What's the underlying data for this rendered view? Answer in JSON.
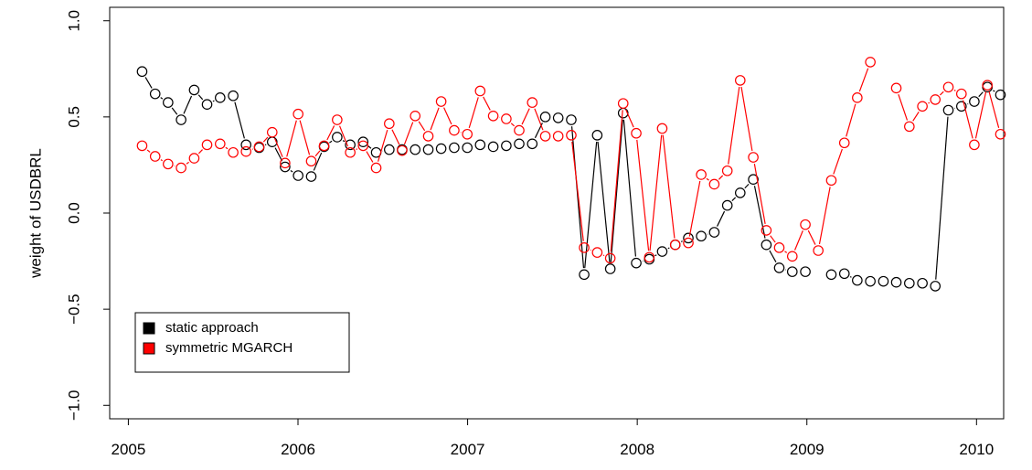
{
  "chart_data": {
    "type": "line",
    "y_label": "weight of USDBRL",
    "x": [
      2005.081,
      2005.158,
      2005.234,
      2005.311,
      2005.388,
      2005.464,
      2005.541,
      2005.618,
      2005.694,
      2005.771,
      2005.848,
      2005.924,
      2006.001,
      2006.078,
      2006.154,
      2006.231,
      2006.308,
      2006.384,
      2006.461,
      2006.538,
      2006.614,
      2006.691,
      2006.768,
      2006.844,
      2006.921,
      2006.998,
      2007.074,
      2007.151,
      2007.228,
      2007.304,
      2007.381,
      2007.458,
      2007.534,
      2007.611,
      2007.687,
      2007.764,
      2007.841,
      2007.917,
      2007.994,
      2008.071,
      2008.147,
      2008.224,
      2008.301,
      2008.377,
      2008.454,
      2008.531,
      2008.607,
      2008.684,
      2008.761,
      2008.837,
      2008.914,
      2008.991,
      2009.067,
      2009.144,
      2009.221,
      2009.297,
      2009.374,
      2009.451,
      2009.527,
      2009.604,
      2009.681,
      2009.757,
      2009.834,
      2009.911,
      2009.987,
      2010.064,
      2010.141
    ],
    "series": [
      {
        "name": "static approach",
        "color": "#000000",
        "values": [
          0.736,
          0.62,
          0.575,
          0.485,
          0.64,
          0.565,
          0.6,
          0.61,
          0.355,
          0.34,
          0.37,
          0.24,
          0.195,
          0.19,
          0.345,
          0.395,
          0.355,
          0.37,
          0.315,
          0.33,
          0.33,
          0.33,
          0.33,
          0.335,
          0.34,
          0.34,
          0.355,
          0.345,
          0.35,
          0.36,
          0.36,
          0.5,
          0.495,
          0.485,
          -0.32,
          0.405,
          -0.29,
          0.52,
          -0.26,
          -0.24,
          -0.2,
          -0.165,
          -0.13,
          -0.12,
          -0.1,
          0.04,
          0.105,
          0.175,
          -0.165,
          -0.285,
          -0.305,
          -0.305,
          null,
          -0.32,
          -0.315,
          -0.35,
          -0.355,
          -0.355,
          -0.36,
          -0.365,
          -0.365,
          -0.38,
          0.535,
          0.555,
          0.58,
          0.655,
          0.615
        ]
      },
      {
        "name": "symmetric MGARCH",
        "color": "#ff0000",
        "values": [
          0.35,
          0.295,
          0.255,
          0.235,
          0.285,
          0.355,
          0.36,
          0.315,
          0.32,
          0.345,
          0.42,
          0.26,
          0.515,
          0.27,
          0.35,
          0.485,
          0.315,
          0.35,
          0.235,
          0.465,
          0.325,
          0.505,
          0.4,
          0.58,
          0.43,
          0.41,
          0.635,
          0.505,
          0.49,
          0.43,
          0.575,
          0.4,
          0.4,
          0.405,
          -0.18,
          -0.205,
          -0.235,
          0.57,
          0.415,
          -0.23,
          0.44,
          -0.165,
          -0.155,
          0.2,
          0.15,
          0.22,
          0.69,
          0.29,
          -0.09,
          -0.18,
          -0.225,
          -0.06,
          -0.195,
          0.17,
          0.365,
          0.6,
          0.785,
          null,
          0.65,
          0.45,
          0.555,
          0.59,
          0.655,
          0.62,
          0.355,
          0.665,
          0.41
        ]
      }
    ],
    "xlim": [
      2004.89,
      2010.16
    ],
    "ylim": [
      -1.07,
      1.07
    ],
    "xticks": [
      2005,
      2006,
      2007,
      2008,
      2009,
      2010
    ],
    "yticks": [
      {
        "value": -1,
        "label": "−1.0"
      },
      {
        "value": -0.5,
        "label": "−0.5"
      },
      {
        "value": 0,
        "label": "0.0"
      },
      {
        "value": 0.5,
        "label": "0.5"
      },
      {
        "value": 1,
        "label": "1.0"
      }
    ],
    "legend": "bottomleft"
  }
}
